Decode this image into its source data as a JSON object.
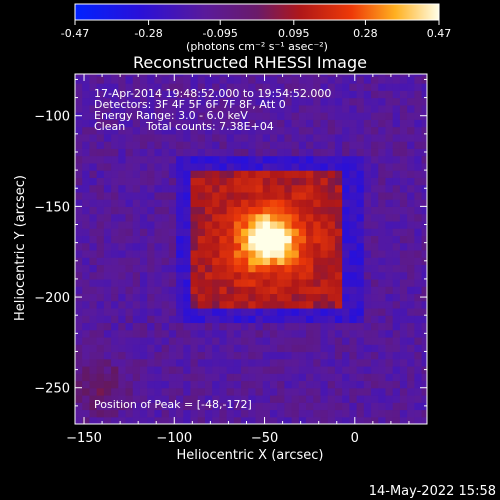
{
  "colorbar": {
    "ticks": [
      "-0.47",
      "-0.28",
      "-0.095",
      "0.095",
      "0.28",
      "0.47"
    ],
    "tick_values": [
      -0.47,
      -0.28,
      -0.095,
      0.095,
      0.28,
      0.47
    ],
    "range": [
      -0.47,
      0.47
    ],
    "unit_label": "(photons cm⁻² s⁻¹ asec⁻²)"
  },
  "chart_data": {
    "type": "heatmap",
    "title": "Reconstructed RHESSI Image",
    "xlabel": "Heliocentric X (arcsec)",
    "ylabel": "Heliocentric Y (arcsec)",
    "xlim": [
      -155,
      40
    ],
    "ylim": [
      -270,
      -77
    ],
    "x_ticks": [
      -150,
      -100,
      -50,
      0
    ],
    "x_tick_labels": [
      "−150",
      "−100",
      "−50",
      "0"
    ],
    "y_ticks": [
      -250,
      -200,
      -150,
      -100
    ],
    "y_tick_labels": [
      "−250",
      "−200",
      "−150",
      "−100"
    ],
    "grid": false,
    "colormap": "RHESSI blue-purple-red-yellow-white",
    "peak": [
      -48,
      -172
    ],
    "source_center": [
      -48,
      -168
    ],
    "annotations": {
      "time_range": "17-Apr-2014 19:48:52.000 to 19:54:52.000",
      "detectors": "Detectors: 3F 4F 5F 6F 7F 8F, Att 0",
      "energy": "Energy Range: 3.0 - 6.0 keV",
      "method": "Clean",
      "counts": "Total counts: 7.38E+04",
      "peak_position": "Position of Peak = [-48,-172]"
    }
  },
  "footer": {
    "timestamp": "14-May-2022 15:58"
  }
}
